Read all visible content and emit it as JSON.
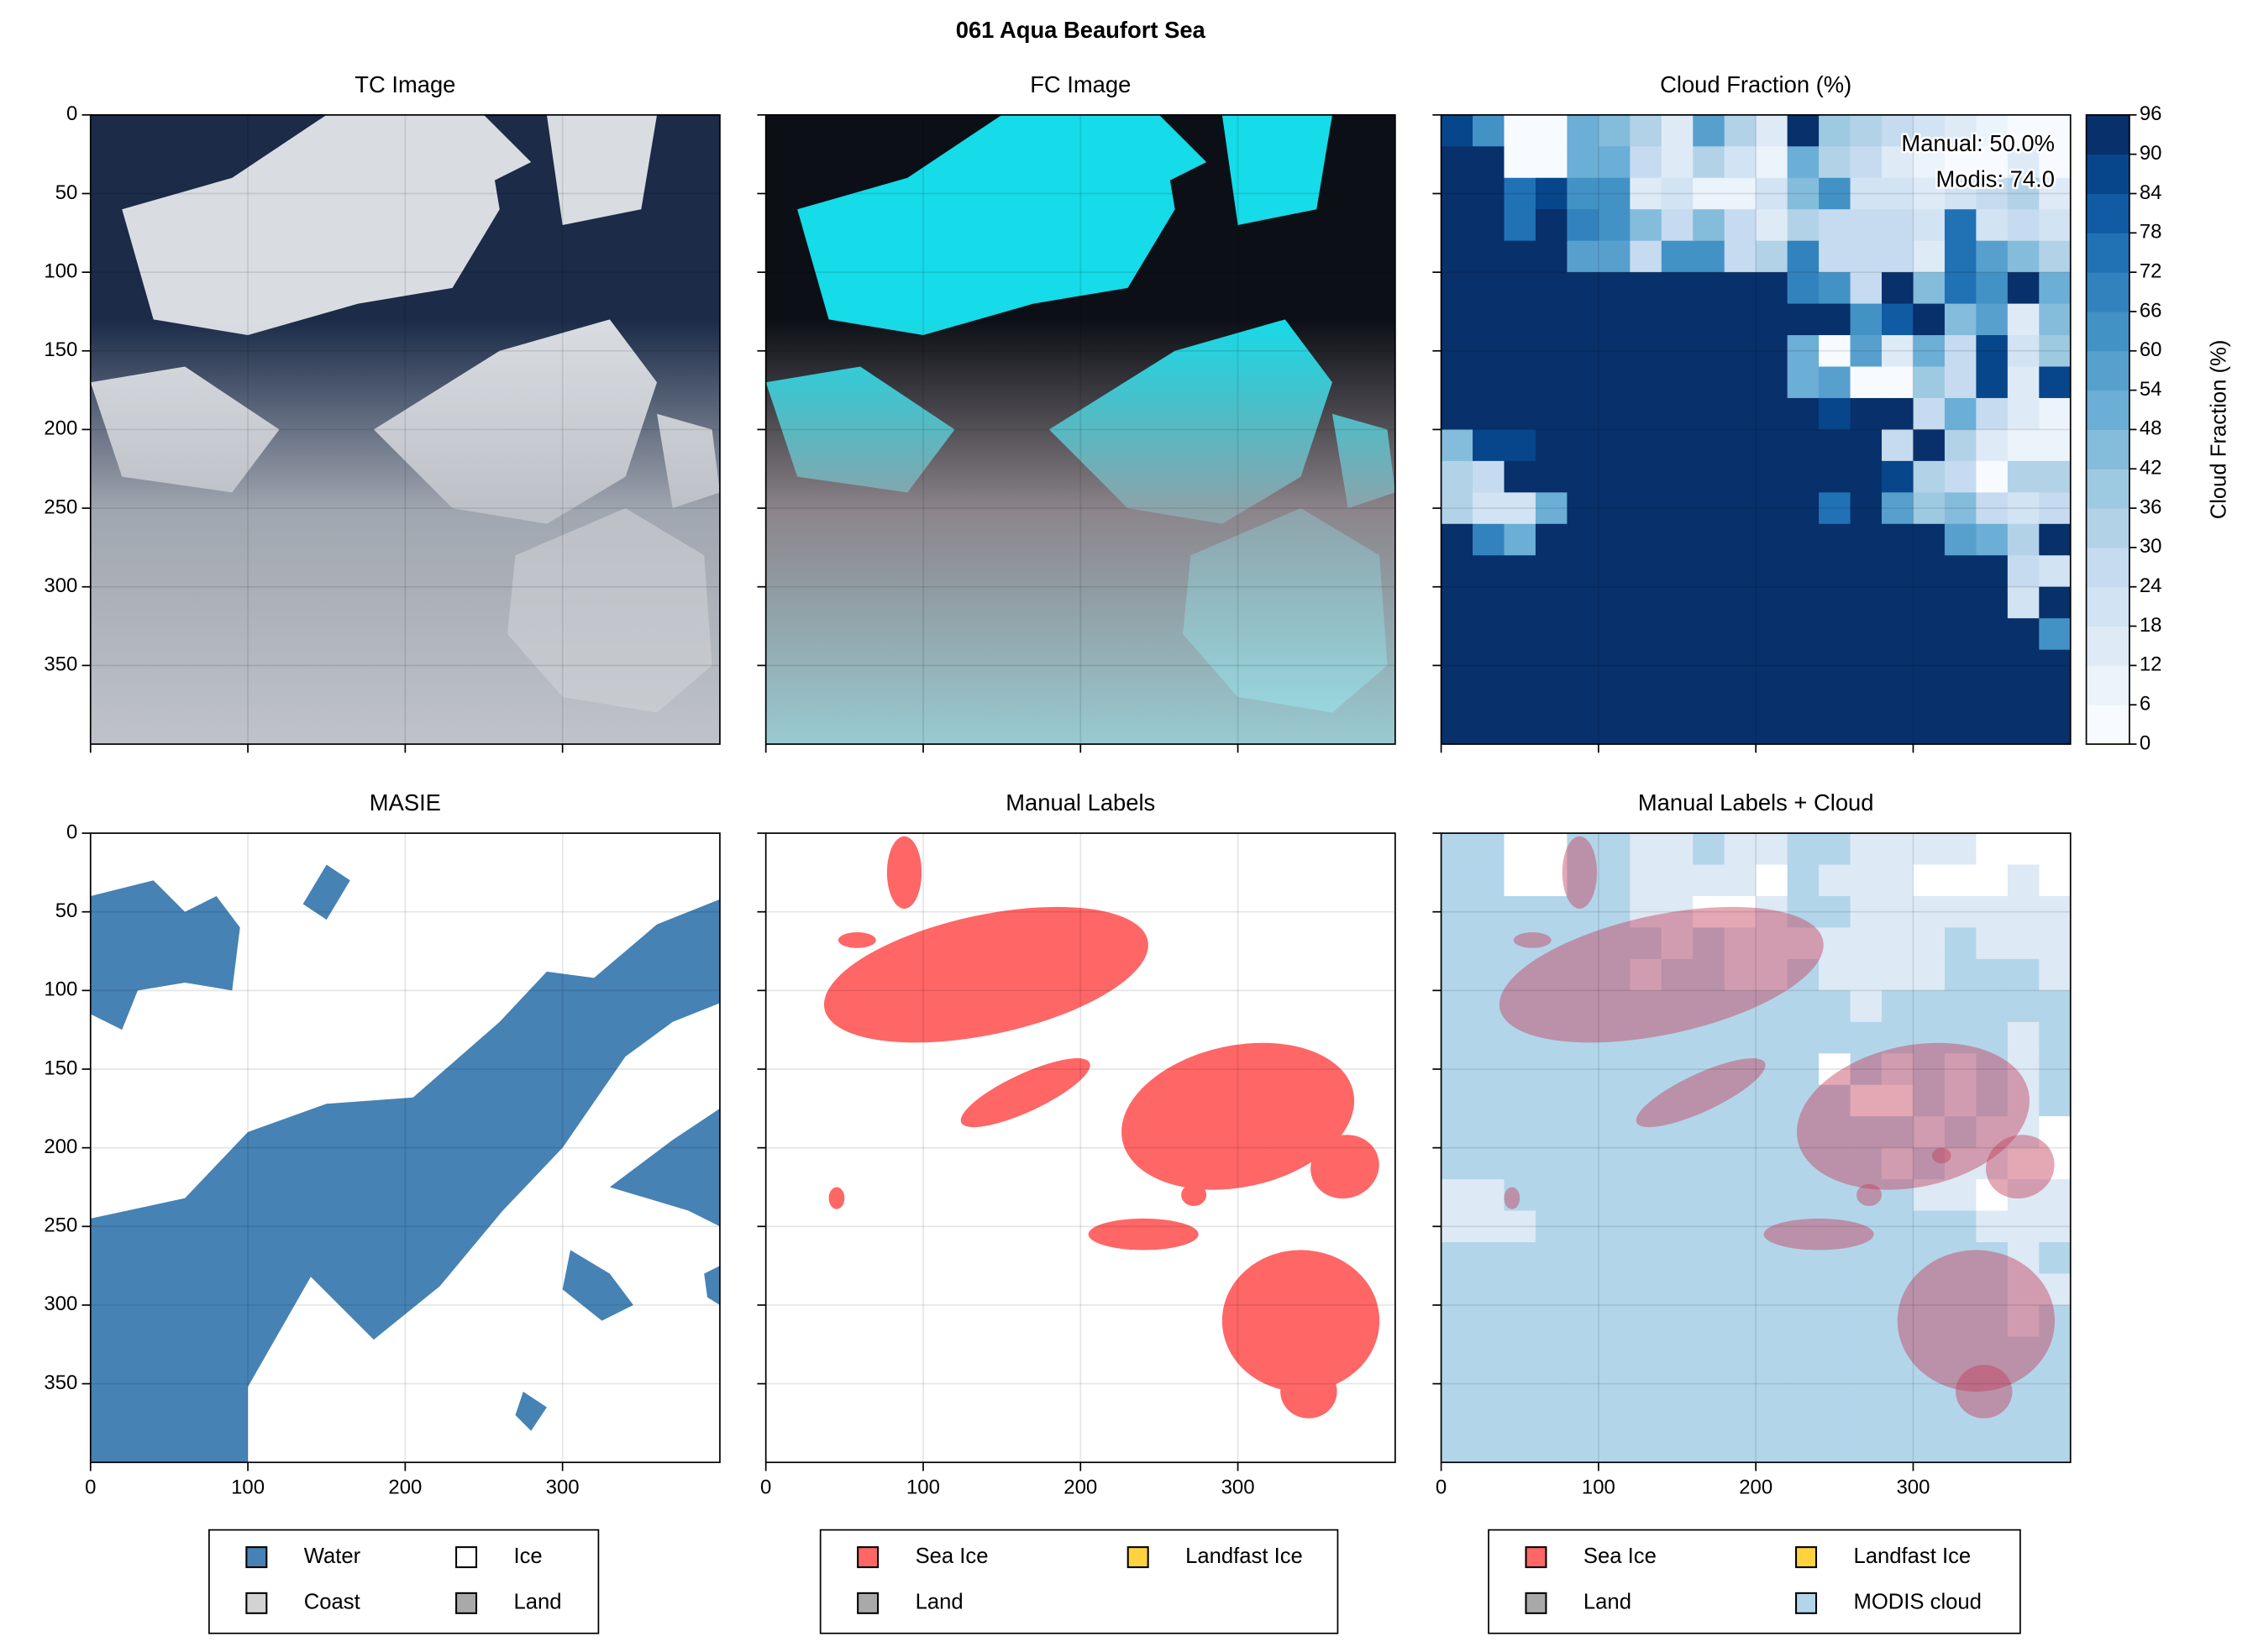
{
  "chart_data": {
    "title": "061 Aqua Beaufort Sea",
    "xlim": [
      0,
      400
    ],
    "ylim": [
      400,
      0
    ],
    "xticks": [
      0,
      100,
      200,
      300
    ],
    "yticks": [
      0,
      50,
      100,
      150,
      200,
      250,
      300,
      350
    ],
    "grid": true,
    "panels": [
      {
        "type": "image",
        "title": "TC Image"
      },
      {
        "type": "image",
        "title": "FC Image"
      },
      {
        "type": "heatmap",
        "title": "Cloud Fraction (%)",
        "values": [
          [
            84,
            60,
            0,
            0,
            48,
            42,
            30,
            12,
            54,
            30,
            12,
            90,
            36,
            30,
            24,
            18,
            12,
            6,
            0,
            0
          ],
          [
            96,
            96,
            0,
            0,
            48,
            48,
            24,
            12,
            30,
            18,
            6,
            48,
            30,
            24,
            12,
            6,
            0,
            0,
            12,
            0
          ],
          [
            96,
            96,
            72,
            84,
            60,
            60,
            12,
            18,
            6,
            6,
            18,
            42,
            60,
            18,
            18,
            12,
            18,
            24,
            30,
            12
          ],
          [
            96,
            96,
            72,
            90,
            66,
            60,
            42,
            24,
            42,
            24,
            12,
            30,
            24,
            24,
            24,
            18,
            72,
            18,
            24,
            18
          ],
          [
            96,
            96,
            96,
            96,
            54,
            54,
            24,
            60,
            60,
            24,
            30,
            66,
            24,
            24,
            24,
            12,
            72,
            54,
            42,
            30
          ],
          [
            96,
            96,
            96,
            96,
            96,
            96,
            96,
            90,
            96,
            96,
            96,
            66,
            60,
            24,
            96,
            42,
            72,
            60,
            90,
            48
          ],
          [
            96,
            96,
            96,
            96,
            96,
            96,
            96,
            96,
            96,
            96,
            96,
            96,
            96,
            60,
            78,
            96,
            42,
            54,
            12,
            42
          ],
          [
            96,
            96,
            96,
            96,
            96,
            96,
            96,
            96,
            96,
            96,
            96,
            48,
            0,
            54,
            12,
            48,
            24,
            84,
            18,
            36
          ],
          [
            96,
            96,
            96,
            96,
            96,
            96,
            96,
            96,
            96,
            96,
            96,
            48,
            54,
            0,
            0,
            36,
            24,
            84,
            12,
            84
          ],
          [
            96,
            96,
            96,
            96,
            96,
            96,
            96,
            96,
            96,
            96,
            96,
            96,
            84,
            96,
            96,
            24,
            48,
            24,
            12,
            6
          ],
          [
            42,
            84,
            84,
            96,
            96,
            96,
            96,
            96,
            96,
            96,
            96,
            96,
            96,
            96,
            24,
            96,
            30,
            12,
            6,
            6
          ],
          [
            30,
            24,
            96,
            96,
            96,
            96,
            96,
            96,
            96,
            96,
            96,
            96,
            96,
            96,
            84,
            30,
            24,
            0,
            30,
            30
          ],
          [
            30,
            18,
            18,
            48,
            96,
            96,
            96,
            96,
            96,
            96,
            96,
            96,
            72,
            96,
            54,
            36,
            42,
            24,
            18,
            24
          ],
          [
            96,
            66,
            48,
            96,
            96,
            96,
            96,
            96,
            96,
            96,
            96,
            96,
            96,
            96,
            96,
            96,
            54,
            48,
            30,
            96
          ],
          [
            96,
            96,
            96,
            96,
            96,
            96,
            96,
            96,
            96,
            96,
            96,
            96,
            96,
            96,
            96,
            96,
            96,
            96,
            24,
            18
          ],
          [
            96,
            96,
            96,
            96,
            96,
            96,
            96,
            96,
            96,
            96,
            96,
            96,
            96,
            96,
            96,
            96,
            96,
            96,
            18,
            96
          ],
          [
            96,
            96,
            96,
            96,
            96,
            96,
            96,
            96,
            96,
            96,
            96,
            96,
            96,
            96,
            96,
            96,
            96,
            96,
            96,
            60
          ],
          [
            96,
            96,
            96,
            96,
            96,
            96,
            96,
            96,
            96,
            96,
            96,
            96,
            96,
            96,
            96,
            96,
            96,
            96,
            96,
            96
          ],
          [
            96,
            96,
            96,
            96,
            96,
            96,
            96,
            96,
            96,
            96,
            96,
            96,
            96,
            96,
            96,
            96,
            96,
            96,
            96,
            96
          ],
          [
            96,
            96,
            96,
            96,
            96,
            96,
            96,
            96,
            96,
            96,
            96,
            96,
            96,
            96,
            96,
            96,
            96,
            96,
            96,
            96
          ]
        ],
        "annotations": [
          "Manual: 50.0%",
          "Modis: 74.0"
        ],
        "colorbar": {
          "label": "Cloud Fraction (%)",
          "lim": [
            0,
            96
          ],
          "ticks": [
            0,
            6,
            12,
            18,
            24,
            30,
            36,
            42,
            48,
            54,
            60,
            66,
            72,
            78,
            84,
            90,
            96
          ],
          "colors": [
            "#f7fbff",
            "#ebf3fb",
            "#deebf7",
            "#d2e3f3",
            "#c6dbef",
            "#b2d2e8",
            "#9ecae1",
            "#84bcdb",
            "#6baed6",
            "#57a0ce",
            "#4292c6",
            "#3282be",
            "#2171b5",
            "#105ba4",
            "#08468b",
            "#08306b"
          ]
        }
      },
      {
        "type": "image",
        "title": "MASIE",
        "legend": [
          {
            "name": "Water",
            "color": "#4682b4"
          },
          {
            "name": "Coast",
            "color": "#d3d3d3"
          },
          {
            "name": "Ice",
            "color": "#ffffff"
          },
          {
            "name": "Land",
            "color": "#a9a9a9"
          }
        ]
      },
      {
        "type": "image",
        "title": "Manual Labels",
        "legend": [
          {
            "name": "Sea Ice",
            "color": "#ff6666"
          },
          {
            "name": "Land",
            "color": "#a9a9a9"
          },
          {
            "name": "Landfast Ice",
            "color": "#ffd23f"
          }
        ]
      },
      {
        "type": "overlay",
        "title": "Manual Labels + Cloud",
        "legend": [
          {
            "name": "Sea Ice",
            "color": "#ff6666"
          },
          {
            "name": "Land",
            "color": "#a9a9a9"
          },
          {
            "name": "Landfast Ice",
            "color": "#ffd23f"
          },
          {
            "name": "MODIS cloud",
            "color": "#b3d5ea"
          }
        ]
      }
    ]
  }
}
